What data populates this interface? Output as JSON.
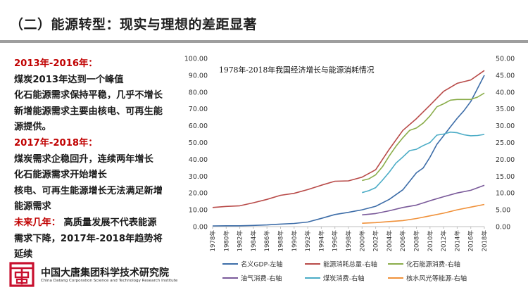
{
  "header": {
    "title": "（二）能源转型：现实与理想的差距显著"
  },
  "left_panel": {
    "lines": [
      {
        "text": "2013年-2016年：",
        "color": "red"
      },
      {
        "text": "煤炭2013年达到一个峰值",
        "color": "black"
      },
      {
        "text": "化石能源需求保持平稳，几乎不增长",
        "color": "black"
      },
      {
        "text": "新增能源需求主要由核电、可再生能",
        "color": "black"
      },
      {
        "text": "源提供。",
        "color": "black"
      },
      {
        "text": "2017年-2018年：",
        "color": "red"
      },
      {
        "text": "煤炭需求企稳回升，连续两年增长",
        "color": "black"
      },
      {
        "text": "化石能源需求开始增长",
        "color": "black"
      },
      {
        "text": "核电、可再生能源增长无法满足新增",
        "color": "black"
      },
      {
        "text": "能源需求",
        "color": "black"
      },
      {
        "text": "未来几年：",
        "color": "red",
        "suffix": " 高质量发展不代表能源"
      },
      {
        "text": "需求下降，2017年-2018年趋势将",
        "color": "black"
      },
      {
        "text": "延续",
        "color": "black"
      }
    ]
  },
  "logo": {
    "name_cn": "中国大唐集团科学技术研究院",
    "name_en": "China Datang Corporation Science and Technology Research Institute",
    "icon": "datang-logo-icon",
    "color": "#c8102e"
  },
  "chart_data": {
    "type": "line",
    "title": "1978年-2018年我国经济增长与能源消耗情况",
    "x_labels": [
      "1978年",
      "1980年",
      "1982年",
      "1984年",
      "1986年",
      "1988年",
      "1990年",
      "1992年",
      "1994年",
      "1996年",
      "1998年",
      "2000年",
      "2002年",
      "2004年",
      "2006年",
      "2008年",
      "2010年",
      "2012年",
      "2014年",
      "2016年",
      "2018年"
    ],
    "x_range": [
      1978,
      2018
    ],
    "y_left": {
      "min": 0,
      "max": 100,
      "step": 10,
      "tick_labels": [
        "0.00",
        "10.00",
        "20.00",
        "30.00",
        "40.00",
        "50.00",
        "60.00",
        "70.00",
        "80.00",
        "90.00",
        "100.00"
      ]
    },
    "y_right": {
      "min": 0,
      "max": 50,
      "step": 5,
      "tick_labels": [
        "0.00",
        "5.00",
        "10.00",
        "15.00",
        "20.00",
        "25.00",
        "30.00",
        "35.00",
        "40.00",
        "45.00",
        "50.00"
      ]
    },
    "grid": false,
    "legend_position": "bottom",
    "series": [
      {
        "name": "名义GDP-左轴",
        "axis": "left",
        "color": "#3d6da8",
        "x": [
          1978,
          1980,
          1982,
          1984,
          1986,
          1988,
          1990,
          1992,
          1994,
          1996,
          1998,
          2000,
          2002,
          2004,
          2006,
          2008,
          2009,
          2010,
          2011,
          2012,
          2013,
          2014,
          2015,
          2016,
          2017,
          2018
        ],
        "y": [
          0.4,
          0.5,
          0.5,
          0.7,
          1.0,
          1.5,
          1.9,
          2.7,
          4.9,
          7.2,
          8.5,
          10.0,
          12.1,
          16.2,
          21.9,
          32.0,
          34.9,
          41.3,
          48.9,
          54.0,
          59.3,
          64.4,
          68.9,
          74.4,
          82.1,
          90.0
        ]
      },
      {
        "name": "能源消耗总量-右轴",
        "axis": "right",
        "color": "#b84a48",
        "x": [
          1978,
          1980,
          1982,
          1984,
          1986,
          1988,
          1990,
          1992,
          1994,
          1996,
          1998,
          2000,
          2002,
          2004,
          2006,
          2008,
          2010,
          2012,
          2014,
          2016,
          2018
        ],
        "y": [
          5.7,
          6.0,
          6.2,
          7.1,
          8.1,
          9.3,
          9.9,
          11.0,
          12.3,
          13.5,
          13.6,
          14.7,
          16.9,
          23.0,
          28.6,
          32.1,
          36.1,
          40.2,
          42.6,
          43.6,
          46.4
        ]
      },
      {
        "name": "化石能源消费-右轴",
        "axis": "right",
        "color": "#8aad4a",
        "x": [
          2000,
          2001,
          2002,
          2003,
          2004,
          2005,
          2006,
          2007,
          2008,
          2009,
          2010,
          2011,
          2012,
          2013,
          2014,
          2015,
          2016,
          2017,
          2018
        ],
        "y": [
          13.7,
          14.2,
          15.4,
          17.8,
          21.0,
          23.9,
          26.4,
          28.6,
          29.3,
          30.8,
          32.9,
          35.6,
          36.5,
          37.6,
          37.8,
          37.8,
          37.8,
          38.5,
          39.7
        ]
      },
      {
        "name": "油气消费-右轴",
        "axis": "right",
        "color": "#7a5a9a",
        "x": [
          2000,
          2002,
          2004,
          2006,
          2008,
          2010,
          2012,
          2014,
          2016,
          2018
        ],
        "y": [
          3.5,
          3.9,
          4.7,
          5.7,
          6.4,
          7.7,
          8.9,
          10.0,
          10.8,
          12.3
        ]
      },
      {
        "name": "煤炭消费-右轴",
        "axis": "right",
        "color": "#4bacc6",
        "x": [
          2000,
          2001,
          2002,
          2003,
          2004,
          2005,
          2006,
          2007,
          2008,
          2009,
          2010,
          2011,
          2012,
          2013,
          2014,
          2015,
          2016,
          2017,
          2018
        ],
        "y": [
          10.1,
          10.7,
          11.6,
          13.8,
          16.2,
          18.9,
          20.7,
          22.6,
          23.0,
          24.1,
          25.0,
          27.2,
          27.5,
          28.1,
          27.9,
          27.3,
          27.0,
          27.1,
          27.4
        ]
      },
      {
        "name": "核水风光等能源-右轴",
        "axis": "right",
        "color": "#f0913a",
        "x": [
          2000,
          2002,
          2004,
          2006,
          2008,
          2010,
          2012,
          2014,
          2016,
          2018
        ],
        "y": [
          1.0,
          1.2,
          1.5,
          1.8,
          2.4,
          3.2,
          4.0,
          5.0,
          5.8,
          6.6
        ]
      }
    ]
  }
}
